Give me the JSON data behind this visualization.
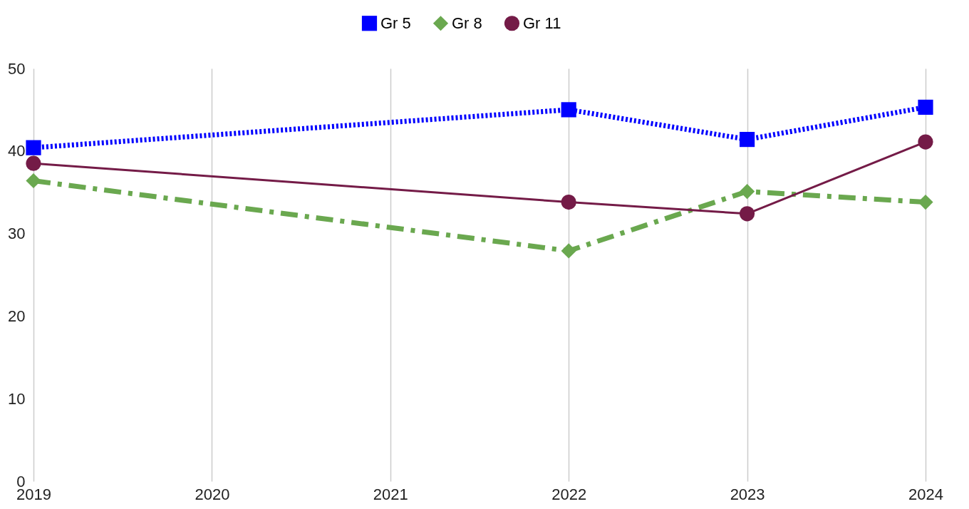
{
  "chart_data": {
    "type": "line",
    "x": [
      2019,
      2022,
      2023,
      2024
    ],
    "xlim": [
      2019,
      2024
    ],
    "xticks": [
      2019,
      2020,
      2021,
      2022,
      2023,
      2024
    ],
    "ylim": [
      0,
      50
    ],
    "yticks": [
      0,
      10,
      20,
      30,
      40,
      50
    ],
    "grid": "x",
    "legend": "top",
    "series": [
      {
        "name": "Gr 5",
        "color": "#0000ff",
        "marker": "square",
        "line_style": "dotted",
        "values": [
          40.4,
          45.0,
          41.4,
          45.3
        ]
      },
      {
        "name": "Gr 8",
        "color": "#6aa84f",
        "marker": "diamond",
        "line_style": "dashdot",
        "values": [
          36.4,
          27.9,
          35.1,
          33.8
        ]
      },
      {
        "name": "Gr 11",
        "color": "#741b47",
        "marker": "circle",
        "line_style": "solid",
        "values": [
          38.5,
          33.8,
          32.4,
          41.1
        ]
      }
    ]
  }
}
